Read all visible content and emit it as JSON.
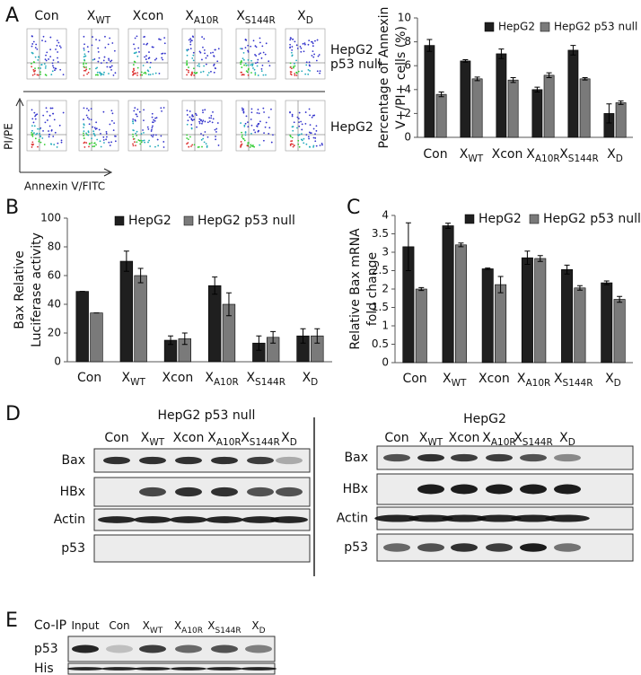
{
  "panel_labels": [
    "A",
    "B",
    "C",
    "D",
    "E"
  ],
  "flow": {
    "columns": [
      [
        "Con"
      ],
      [
        "X",
        "WT"
      ],
      [
        "Xcon"
      ],
      [
        "X",
        "A10R"
      ],
      [
        "X",
        "S144R"
      ],
      [
        "X",
        "D"
      ]
    ],
    "rows": [
      [
        "HepG2",
        "p53 null"
      ],
      [
        "HepG2"
      ]
    ],
    "y_axis": "PI/PE",
    "x_axis": "Annexin V/FITC"
  },
  "chart_data": [
    {
      "type": "bar",
      "y_label": [
        "Percentage of Annexin",
        "V+/PI+ cells (%)"
      ],
      "categories": [
        [
          "Con"
        ],
        [
          "X",
          "WT"
        ],
        [
          "Xcon"
        ],
        [
          "X",
          "A10R"
        ],
        [
          "X",
          "S144R"
        ],
        [
          "X",
          "D"
        ]
      ],
      "series": [
        {
          "name": "HepG2",
          "color": "#1f1f1f",
          "values": [
            7.7,
            6.4,
            7.0,
            4.0,
            7.3,
            2.0
          ],
          "errors": [
            0.5,
            0.1,
            0.4,
            0.2,
            0.4,
            0.8
          ]
        },
        {
          "name": "HepG2 p53 null",
          "color": "#7a7a7a",
          "values": [
            3.6,
            4.9,
            4.8,
            5.2,
            4.9,
            2.9
          ],
          "errors": [
            0.2,
            0.15,
            0.2,
            0.2,
            0.1,
            0.15
          ]
        }
      ],
      "ylim": [
        0,
        10
      ],
      "yticks": [
        0,
        2,
        4,
        6,
        8,
        10
      ],
      "legend": "top"
    },
    {
      "type": "bar",
      "y_label": [
        "Bax Relative",
        "Luciferase activity"
      ],
      "categories": [
        [
          "Con"
        ],
        [
          "X",
          "WT"
        ],
        [
          "Xcon"
        ],
        [
          "X",
          "A10R"
        ],
        [
          "X",
          "S144R"
        ],
        [
          "X",
          "D"
        ]
      ],
      "series": [
        {
          "name": "HepG2",
          "color": "#1f1f1f",
          "values": [
            49,
            70,
            15,
            53,
            13,
            18
          ],
          "errors": [
            0,
            7,
            3,
            6,
            5,
            5
          ]
        },
        {
          "name": "HepG2 p53 null",
          "color": "#7a7a7a",
          "values": [
            34,
            60,
            16,
            40,
            17,
            18
          ],
          "errors": [
            0,
            5,
            4,
            8,
            4,
            5
          ]
        }
      ],
      "ylim": [
        0,
        100
      ],
      "yticks": [
        0,
        20,
        40,
        60,
        80,
        100
      ],
      "legend": "top"
    },
    {
      "type": "bar",
      "y_label": [
        "Relative Bax mRNA",
        "fold change"
      ],
      "categories": [
        [
          "Con"
        ],
        [
          "X",
          "WT"
        ],
        [
          "Xcon"
        ],
        [
          "X",
          "A10R"
        ],
        [
          "X",
          "S144R"
        ],
        [
          "X",
          "D"
        ]
      ],
      "series": [
        {
          "name": "HepG2",
          "color": "#1f1f1f",
          "values": [
            3.15,
            3.72,
            2.55,
            2.85,
            2.53,
            2.17
          ],
          "errors": [
            0.65,
            0.07,
            0.02,
            0.18,
            0.12,
            0.05
          ]
        },
        {
          "name": "HepG2 p53 null",
          "color": "#7a7a7a",
          "values": [
            2.0,
            3.2,
            2.12,
            2.83,
            2.03,
            1.72
          ],
          "errors": [
            0.04,
            0.05,
            0.22,
            0.08,
            0.06,
            0.08
          ]
        }
      ],
      "ylim": [
        0,
        4
      ],
      "yticks": [
        0,
        0.5,
        1,
        1.5,
        2,
        2.5,
        3,
        3.5,
        4
      ],
      "legend": "top"
    }
  ],
  "blots": {
    "left": {
      "title": "HepG2 p53 null",
      "lanes": [
        [
          "Con"
        ],
        [
          "X",
          "WT"
        ],
        [
          "Xcon"
        ],
        [
          "X",
          "A10R"
        ],
        [
          "X",
          "S144R"
        ],
        [
          "X",
          "D"
        ]
      ],
      "rows": [
        "Bax",
        "HBx",
        "Actin",
        "p53"
      ]
    },
    "right": {
      "title": "HepG2",
      "lanes": [
        [
          "Con"
        ],
        [
          "X",
          "WT"
        ],
        [
          "Xcon"
        ],
        [
          "X",
          "A10R"
        ],
        [
          "X",
          "S144R"
        ],
        [
          "X",
          "D"
        ]
      ],
      "rows": [
        "Bax",
        "HBx",
        "Actin",
        "p53"
      ]
    }
  },
  "coip": {
    "title": "Co-IP",
    "lanes": [
      [
        "Input"
      ],
      [
        "Con"
      ],
      [
        "X",
        "WT"
      ],
      [
        "X",
        "A10R"
      ],
      [
        "X",
        "S144R"
      ],
      [
        "X",
        "D"
      ]
    ],
    "rows": [
      "p53",
      "His"
    ]
  }
}
